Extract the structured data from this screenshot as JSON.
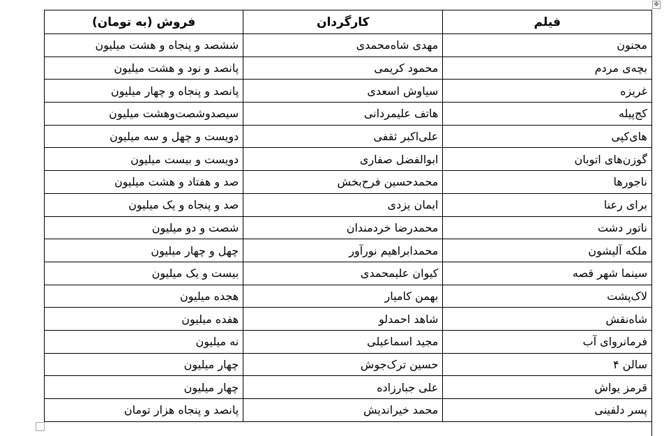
{
  "table": {
    "headers": [
      "فیلم",
      "کارگردان",
      "فروش (به تومان)"
    ],
    "rows": [
      [
        "مجنون",
        "مهدی شاه‌محمدی",
        "ششصد و پنجاه و هشت میلیون"
      ],
      [
        "بچه‌ی مردم",
        "محمود کریمی",
        "پانصد و نود و هشت میلیون"
      ],
      [
        "غریزه",
        "سیاوش اسعدی",
        "پانصد و پنجاه و چهار میلیون"
      ],
      [
        "کج‌پیله",
        "هاتف علیمردانی",
        "سیصدوشصت‌وهشت میلیون"
      ],
      [
        "های‌کپی",
        "علی‌اکبر ثقفی",
        "دویست و چهل و سه میلیون"
      ],
      [
        "گوزن‌های اتوبان",
        "ابوالفضل صفاری",
        "دویست و بیست میلیون"
      ],
      [
        "ناجورها",
        "محمدحسین فرح‌بخش",
        "صد و هفتاد و هشت میلیون"
      ],
      [
        "برای رعنا",
        "ایمان یزدی",
        "صد و پنجاه و یک میلیون"
      ],
      [
        "ناتور دشت",
        "محمدرضا خردمندان",
        "شصت و دو میلیون"
      ],
      [
        "ملکه آلیشون",
        "محمدابراهیم نورآور",
        "چهل و چهار میلیون"
      ],
      [
        "سینما شهر قصه",
        "کیوان علیمحمدی",
        "بیست و یک میلیون"
      ],
      [
        "لاک‌پشت",
        "بهمن کامیار",
        "هجده میلیون"
      ],
      [
        "شاه‌نقش",
        "شاهد احمدلو",
        "هفده میلیون"
      ],
      [
        "فرمانروای آب",
        "مجید اسماعیلی",
        "نه میلیون"
      ],
      [
        "سالن ۴",
        "حسین ترک‌جوش",
        "چهار میلیون"
      ],
      [
        "قرمز یواش",
        "علی جبارزاده",
        "چهار میلیون"
      ],
      [
        "پسر دلفینی",
        "محمد خیراندیش",
        "پانصد و پنجاه هزار تومان"
      ]
    ]
  },
  "icons": {
    "move_handle": "move-arrows-icon"
  }
}
